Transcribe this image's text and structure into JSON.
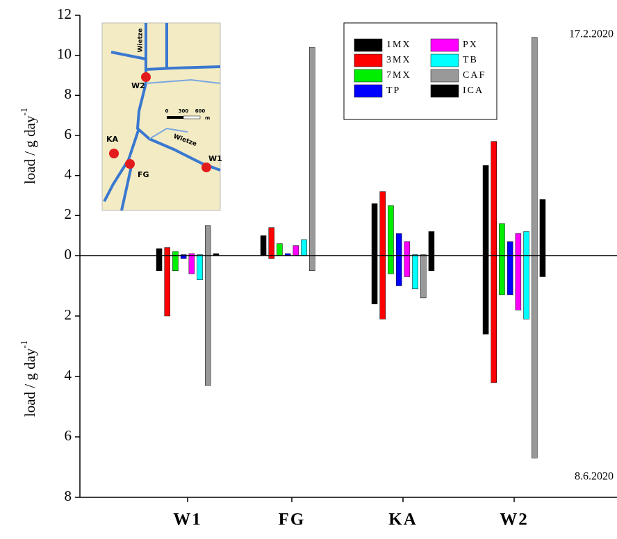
{
  "chart_data": [
    {
      "type": "bar",
      "annotation": "17.2.2020",
      "ylabel": [
        "load / g day",
        "-1"
      ],
      "ylim": [
        0,
        12
      ],
      "yticks": [
        0,
        2,
        4,
        6,
        8,
        10,
        12
      ],
      "legend": "upper right",
      "series": [
        {
          "name": "1MX",
          "color": "#000000",
          "values": [
            0.35,
            1.0,
            2.6,
            4.5
          ]
        },
        {
          "name": "3MX",
          "color": "#ff0000",
          "values": [
            0.4,
            1.4,
            3.2,
            5.7
          ]
        },
        {
          "name": "7MX",
          "color": "#00ee00",
          "values": [
            0.2,
            0.6,
            2.5,
            1.6
          ]
        },
        {
          "name": "TP",
          "color": "#0000ff",
          "values": [
            0.05,
            0.1,
            1.1,
            0.7
          ]
        },
        {
          "name": "PX",
          "color": "#ff00ff",
          "values": [
            0.1,
            0.5,
            0.7,
            1.1
          ]
        },
        {
          "name": "TB",
          "color": "#00ffff",
          "values": [
            0.05,
            0.8,
            0.05,
            1.2
          ]
        },
        {
          "name": "CAF",
          "color": "#999999",
          "values": [
            1.5,
            10.4,
            0.05,
            10.9
          ]
        },
        {
          "name": "ICA",
          "color": "#000000",
          "values": [
            0.1,
            0,
            1.2,
            2.8
          ]
        }
      ]
    },
    {
      "type": "bar",
      "annotation": "8.6.2020",
      "ylabel": [
        "load / g day",
        "-1"
      ],
      "categories": [
        "W1",
        "FG",
        "KA",
        "W2"
      ],
      "ylim": [
        0,
        8
      ],
      "yticks": [
        2,
        4,
        6,
        8
      ],
      "inverted": true,
      "series": [
        {
          "color": "#000000",
          "values": [
            0.5,
            0,
            1.6,
            2.6
          ]
        },
        {
          "color": "#ff0000",
          "values": [
            2.0,
            0.1,
            2.1,
            4.2
          ]
        },
        {
          "color": "#00ee00",
          "values": [
            0.5,
            0,
            0.6,
            1.3
          ]
        },
        {
          "color": "#0000ff",
          "values": [
            0.1,
            0,
            1.0,
            1.3
          ]
        },
        {
          "color": "#ff00ff",
          "values": [
            0.6,
            0,
            0.7,
            1.8
          ]
        },
        {
          "color": "#00ffff",
          "values": [
            0.8,
            0,
            1.1,
            2.1
          ]
        },
        {
          "color": "#999999",
          "values": [
            4.3,
            0.5,
            1.4,
            6.7
          ]
        },
        {
          "color": "#000000",
          "values": [
            0,
            0,
            0.5,
            0.7
          ]
        }
      ]
    }
  ],
  "inset_map": {
    "labels": [
      "Wietze",
      "W2",
      "KA",
      "FG",
      "W1",
      "Wietze",
      "0",
      "300",
      "600",
      "m"
    ]
  }
}
